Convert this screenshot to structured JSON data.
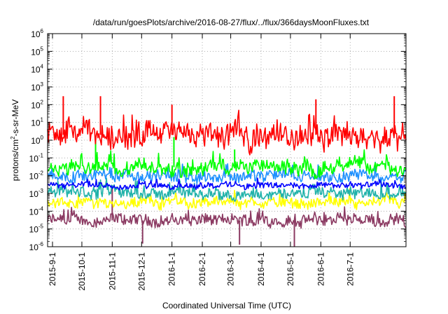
{
  "chart_data": {
    "type": "line",
    "title": "/data/run/goesPlots/archive/2016-08-27/flux/../flux/366daysMoonFluxes.txt",
    "xlabel": "Coordinated Universal Time (UTC)",
    "ylabel": {
      "pre": "protons/cm",
      "sup": "2",
      "post": "-s-sr-MeV"
    },
    "yscale": "log",
    "ylim_exponent": [
      -6,
      6
    ],
    "y_ticks": [
      {
        "base": "10",
        "exp": "-6"
      },
      {
        "base": "10",
        "exp": "-5"
      },
      {
        "base": "10",
        "exp": "-4"
      },
      {
        "base": "10",
        "exp": "-3"
      },
      {
        "base": "10",
        "exp": "-2"
      },
      {
        "base": "10",
        "exp": "-1"
      },
      {
        "base": "10",
        "exp": "0"
      },
      {
        "base": "10",
        "exp": "1"
      },
      {
        "base": "10",
        "exp": "2"
      },
      {
        "base": "10",
        "exp": "3"
      },
      {
        "base": "10",
        "exp": "4"
      },
      {
        "base": "10",
        "exp": "5"
      },
      {
        "base": "10",
        "exp": "6"
      }
    ],
    "xlim": [
      "2015-08-27",
      "2016-08-27"
    ],
    "x_ticks": [
      {
        "label": "2015-9-1",
        "date": "2015-09-01"
      },
      {
        "label": "2015-10-1",
        "date": "2015-10-01"
      },
      {
        "label": "2015-11-1",
        "date": "2015-11-01"
      },
      {
        "label": "2015-12-1",
        "date": "2015-12-01"
      },
      {
        "label": "2016-1-1",
        "date": "2016-01-01"
      },
      {
        "label": "2016-2-1",
        "date": "2016-02-01"
      },
      {
        "label": "2016-3-1",
        "date": "2016-03-01"
      },
      {
        "label": "2016-4-1",
        "date": "2016-04-01"
      },
      {
        "label": "2016-5-1",
        "date": "2016-05-01"
      },
      {
        "label": "2016-6-1",
        "date": "2016-06-01"
      },
      {
        "label": "2016-7-1",
        "date": "2016-07-01"
      }
    ],
    "grid": true,
    "series": [
      {
        "color": "#8b3a62",
        "typical": 3e-05,
        "spread": 0.3,
        "spikes": [
          {
            "date": "2015-11-01",
            "value": 0.002
          },
          {
            "date": "2015-12-02",
            "value": 1.5e-06
          },
          {
            "date": "2016-03-10",
            "value": 1.3e-06
          },
          {
            "date": "2016-05-05",
            "value": 9e-07
          }
        ]
      },
      {
        "color": "#ffff00",
        "typical": 0.0003,
        "spread": 0.25,
        "spikes": []
      },
      {
        "color": "#20b2aa",
        "typical": 0.001,
        "spread": 0.3,
        "spikes": []
      },
      {
        "color": "#1e90ff",
        "typical": 0.01,
        "spread": 0.3,
        "spikes": []
      },
      {
        "color": "#00ff00",
        "typical": 0.03,
        "spread": 0.35,
        "spikes": [
          {
            "date": "2015-10-15",
            "value": 1.0
          },
          {
            "date": "2016-01-03",
            "value": 1.5
          },
          {
            "date": "2016-03-05",
            "value": 0.3
          }
        ]
      },
      {
        "color": "#0000ff",
        "typical": 0.003,
        "spread": 0.15,
        "spikes": []
      },
      {
        "color": "#ff0000",
        "typical": 2.0,
        "spread": 0.6,
        "spikes": [
          {
            "date": "2015-09-12",
            "value": 300
          },
          {
            "date": "2015-10-20",
            "value": 300
          },
          {
            "date": "2016-01-01",
            "value": 100
          },
          {
            "date": "2016-05-27",
            "value": 200
          },
          {
            "date": "2016-08-15",
            "value": 300
          }
        ]
      }
    ]
  }
}
